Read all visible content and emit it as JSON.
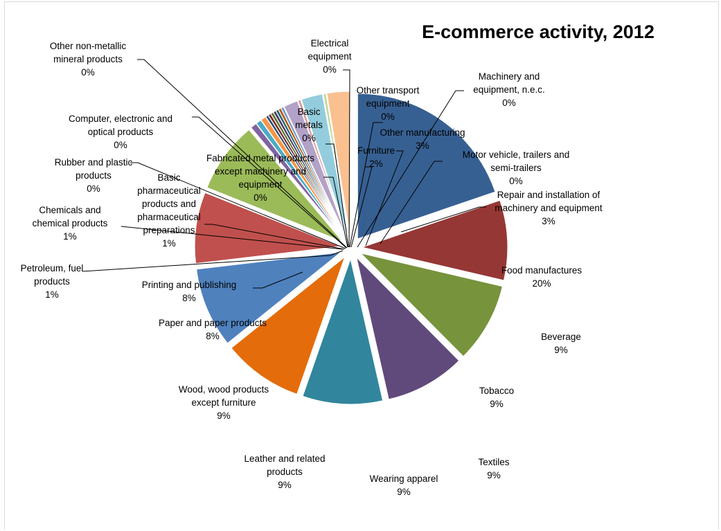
{
  "chart_data": {
    "type": "pie",
    "exploded": true,
    "title": "E-commerce activity, 2012",
    "slices": [
      {
        "name": "Food manufactures",
        "label": "20%",
        "value": 20,
        "color": "#376092"
      },
      {
        "name": "Beverage",
        "label": "9%",
        "value": 9,
        "color": "#953735"
      },
      {
        "name": "Tobacco",
        "label": "9%",
        "value": 9,
        "color": "#77933c"
      },
      {
        "name": "Textiles",
        "label": "9%",
        "value": 9,
        "color": "#604a7b"
      },
      {
        "name": "Wearing apparel",
        "label": "9%",
        "value": 9,
        "color": "#31859c"
      },
      {
        "name": "Leather and related products",
        "label": "9%",
        "value": 9,
        "color": "#e46c0a"
      },
      {
        "name": "Wood, wood products except furniture",
        "label": "9%",
        "value": 9,
        "color": "#4f81bd"
      },
      {
        "name": "Paper and paper products",
        "label": "8%",
        "value": 8,
        "color": "#c0504d"
      },
      {
        "name": "Printing and publishing",
        "label": "8%",
        "value": 8,
        "color": "#9bbb59"
      },
      {
        "name": "Petroleum, fuel products",
        "label": "1%",
        "value": 0.7,
        "color": "#8064a2"
      },
      {
        "name": "Chemicals and chemical products",
        "label": "1%",
        "value": 0.6,
        "color": "#4bacc6"
      },
      {
        "name": "Basic pharmaceutical products and pharmaceutical preparations",
        "label": "1%",
        "value": 0.6,
        "color": "#f79646"
      },
      {
        "name": "Rubber and plastic products",
        "label": "0%",
        "value": 0.3,
        "color": "#2c4d75"
      },
      {
        "name": "Computer, electronic and optical products",
        "label": "0%",
        "value": 0.3,
        "color": "#772c2a"
      },
      {
        "name": "Other non-metallic mineral products",
        "label": "0%",
        "value": 0.3,
        "color": "#5f7530"
      },
      {
        "name": "Fabricated metal products except machinery and equipment",
        "label": "0%",
        "value": 0.3,
        "color": "#4d3b62"
      },
      {
        "name": "Basic metals",
        "label": "0%",
        "value": 0.3,
        "color": "#276a7c"
      },
      {
        "name": "Electrical equipment",
        "label": "0%",
        "value": 0.3,
        "color": "#b65708"
      },
      {
        "name": "Other transport equipment",
        "label": "0%",
        "value": 0.3,
        "color": "#729aca"
      },
      {
        "name": "Furniture",
        "label": "2%",
        "value": 1.6,
        "color": "#b3a2c7"
      },
      {
        "name": "Machinery and equipment, n.e.c.",
        "label": "0%",
        "value": 0.3,
        "color": "#d99694"
      },
      {
        "name": "Other manufacturing",
        "label": "3%",
        "value": 2.4,
        "color": "#93cddd"
      },
      {
        "name": "Motor vehicle, trailers and semi-trailers",
        "label": "0%",
        "value": 0.3,
        "color": "#c3d69b"
      },
      {
        "name": "Repair and installation of machinery and equipment",
        "label": "3%",
        "value": 2.6,
        "color": "#fac090"
      }
    ]
  }
}
